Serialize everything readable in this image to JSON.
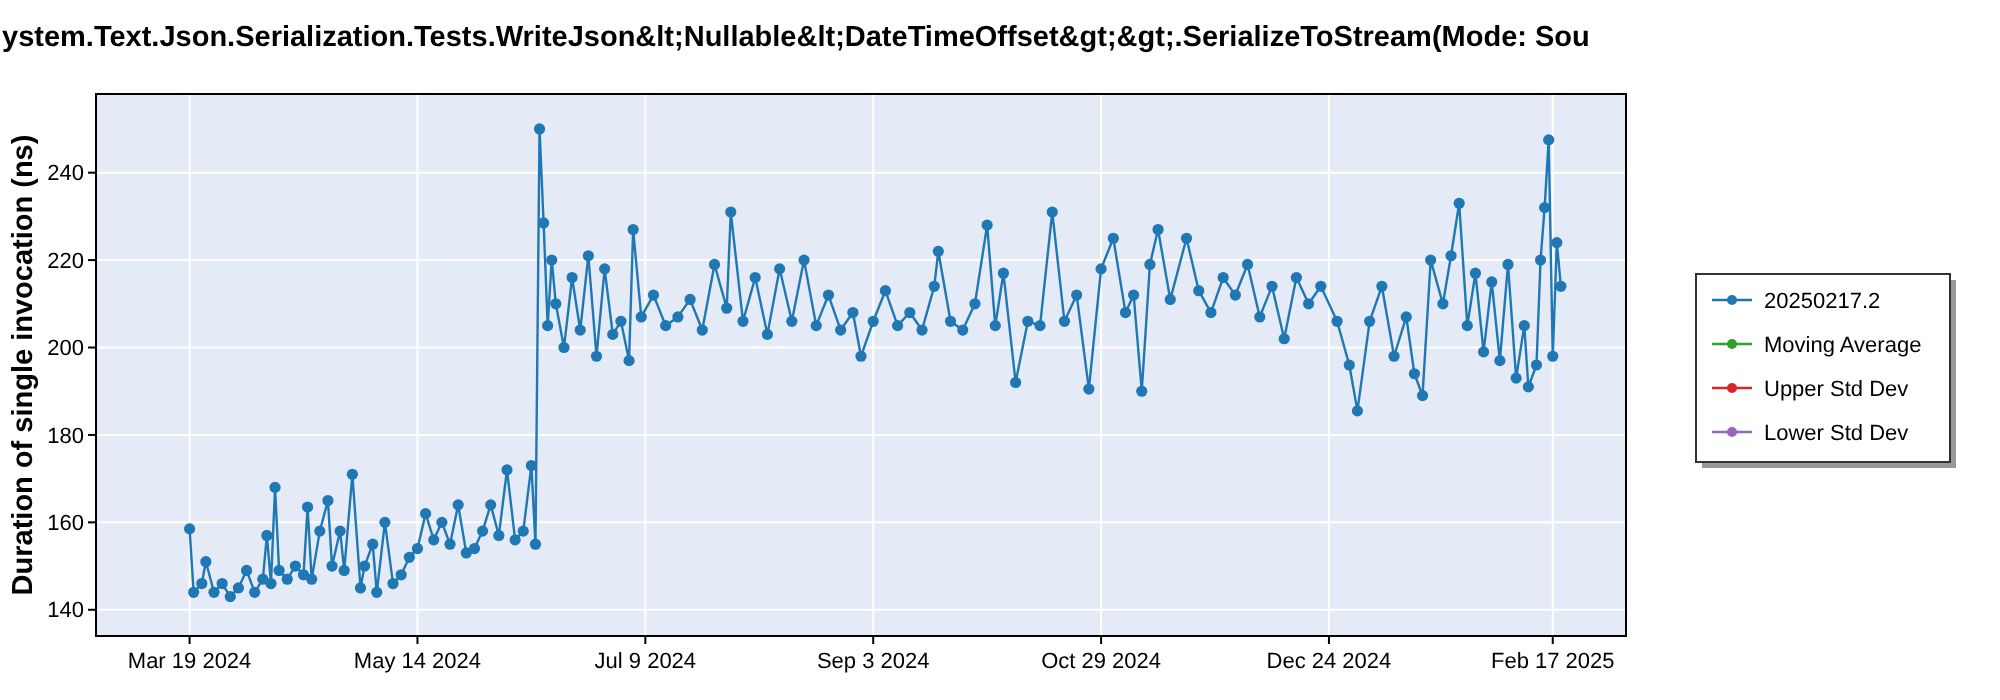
{
  "chart_data": {
    "type": "line",
    "title": "ystem.Text.Json.Serialization.Tests.WriteJson&lt;Nullable&lt;DateTimeOffset&gt;&gt;.SerializeToStream(Mode: Sou",
    "ylabel": "Duration of single invocation (ns)",
    "xlim": [
      "2024-02-25",
      "2025-03-07"
    ],
    "ylim": [
      134,
      258
    ],
    "xticks": [
      {
        "value": "2024-03-19",
        "label": "Mar 19 2024"
      },
      {
        "value": "2024-05-14",
        "label": "May 14 2024"
      },
      {
        "value": "2024-07-09",
        "label": "Jul 9 2024"
      },
      {
        "value": "2024-09-03",
        "label": "Sep 3 2024"
      },
      {
        "value": "2024-10-29",
        "label": "Oct 29 2024"
      },
      {
        "value": "2024-12-24",
        "label": "Dec 24 2024"
      },
      {
        "value": "2025-02-17",
        "label": "Feb 17 2025"
      }
    ],
    "yticks": [
      140,
      160,
      180,
      200,
      220,
      240
    ],
    "grid": true,
    "legend": "right",
    "marker": "circle",
    "line_style": "solid",
    "series": [
      {
        "name": "20250217.2",
        "color": "#1f77b4",
        "x": [
          "2024-03-19",
          "2024-03-20",
          "2024-03-22",
          "2024-03-23",
          "2024-03-25",
          "2024-03-27",
          "2024-03-29",
          "2024-03-31",
          "2024-04-02",
          "2024-04-04",
          "2024-04-06",
          "2024-04-07",
          "2024-04-08",
          "2024-04-09",
          "2024-04-10",
          "2024-04-12",
          "2024-04-14",
          "2024-04-16",
          "2024-04-17",
          "2024-04-18",
          "2024-04-20",
          "2024-04-22",
          "2024-04-23",
          "2024-04-25",
          "2024-04-26",
          "2024-04-28",
          "2024-04-30",
          "2024-05-01",
          "2024-05-03",
          "2024-05-04",
          "2024-05-06",
          "2024-05-08",
          "2024-05-10",
          "2024-05-12",
          "2024-05-14",
          "2024-05-16",
          "2024-05-18",
          "2024-05-20",
          "2024-05-22",
          "2024-05-24",
          "2024-05-26",
          "2024-05-28",
          "2024-05-30",
          "2024-06-01",
          "2024-06-03",
          "2024-06-05",
          "2024-06-07",
          "2024-06-09",
          "2024-06-11",
          "2024-06-12",
          "2024-06-13",
          "2024-06-14",
          "2024-06-15",
          "2024-06-16",
          "2024-06-17",
          "2024-06-19",
          "2024-06-21",
          "2024-06-23",
          "2024-06-25",
          "2024-06-27",
          "2024-06-29",
          "2024-07-01",
          "2024-07-03",
          "2024-07-05",
          "2024-07-06",
          "2024-07-08",
          "2024-07-11",
          "2024-07-14",
          "2024-07-17",
          "2024-07-20",
          "2024-07-23",
          "2024-07-26",
          "2024-07-29",
          "2024-07-30",
          "2024-08-02",
          "2024-08-05",
          "2024-08-08",
          "2024-08-11",
          "2024-08-14",
          "2024-08-17",
          "2024-08-20",
          "2024-08-23",
          "2024-08-26",
          "2024-08-29",
          "2024-08-31",
          "2024-09-03",
          "2024-09-06",
          "2024-09-09",
          "2024-09-12",
          "2024-09-15",
          "2024-09-18",
          "2024-09-19",
          "2024-09-22",
          "2024-09-25",
          "2024-09-28",
          "2024-10-01",
          "2024-10-03",
          "2024-10-05",
          "2024-10-08",
          "2024-10-11",
          "2024-10-14",
          "2024-10-17",
          "2024-10-20",
          "2024-10-23",
          "2024-10-26",
          "2024-10-29",
          "2024-11-01",
          "2024-11-04",
          "2024-11-06",
          "2024-11-08",
          "2024-11-10",
          "2024-11-12",
          "2024-11-15",
          "2024-11-19",
          "2024-11-22",
          "2024-11-25",
          "2024-11-28",
          "2024-12-01",
          "2024-12-04",
          "2024-12-07",
          "2024-12-10",
          "2024-12-13",
          "2024-12-16",
          "2024-12-19",
          "2024-12-22",
          "2024-12-26",
          "2024-12-29",
          "2024-12-31",
          "2025-01-03",
          "2025-01-06",
          "2025-01-09",
          "2025-01-12",
          "2025-01-14",
          "2025-01-16",
          "2025-01-18",
          "2025-01-21",
          "2025-01-23",
          "2025-01-25",
          "2025-01-27",
          "2025-01-29",
          "2025-01-31",
          "2025-02-02",
          "2025-02-04",
          "2025-02-06",
          "2025-02-08",
          "2025-02-10",
          "2025-02-11",
          "2025-02-13",
          "2025-02-14",
          "2025-02-15",
          "2025-02-16",
          "2025-02-17",
          "2025-02-18",
          "2025-02-19"
        ],
        "values": [
          158.5,
          144,
          146,
          151,
          144,
          146,
          143,
          145,
          149,
          144,
          147,
          157,
          146,
          168,
          149,
          147,
          150,
          148,
          163.5,
          147,
          158,
          165,
          150,
          158,
          149,
          171,
          145,
          150,
          155,
          144,
          160,
          146,
          148,
          152,
          154,
          162,
          156,
          160,
          155,
          164,
          153,
          154,
          158,
          164,
          157,
          172,
          156,
          158,
          173,
          155,
          250,
          228.5,
          205,
          220,
          210,
          200,
          216,
          204,
          221,
          198,
          218,
          203,
          206,
          197,
          227,
          207,
          212,
          205,
          207,
          211,
          204,
          219,
          209,
          231,
          206,
          216,
          203,
          218,
          206,
          220,
          205,
          212,
          204,
          208,
          198,
          206,
          213,
          205,
          208,
          204,
          214,
          222,
          206,
          204,
          210,
          228,
          205,
          217,
          192,
          206,
          205,
          231,
          206,
          212,
          190.5,
          218,
          225,
          208,
          212,
          190,
          219,
          227,
          211,
          225,
          213,
          208,
          216,
          212,
          219,
          207,
          214,
          202,
          216,
          210,
          214,
          206,
          196,
          185.5,
          206,
          214,
          198,
          207,
          194,
          189,
          220,
          210,
          221,
          233,
          205,
          217,
          199,
          215,
          197,
          219,
          193,
          205,
          191,
          196,
          220,
          232,
          247.5,
          198,
          224,
          214
        ]
      },
      {
        "name": "Moving Average",
        "color": "#2ca02c"
      },
      {
        "name": "Upper Std Dev",
        "color": "#d62728"
      },
      {
        "name": "Lower Std Dev",
        "color": "#9467bd"
      }
    ]
  }
}
